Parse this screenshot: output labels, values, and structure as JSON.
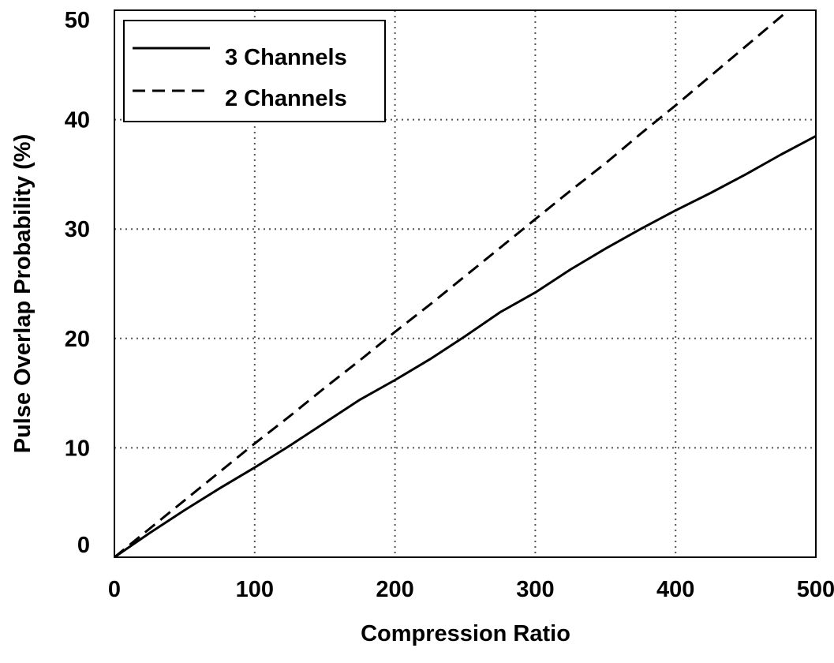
{
  "chart_data": {
    "type": "line",
    "title": "",
    "xlabel": "Compression Ratio",
    "ylabel": "Pulse Overlap Probability (%)",
    "xlim": [
      0,
      500
    ],
    "ylim": [
      0,
      50
    ],
    "x_ticks": [
      "0",
      "100",
      "200",
      "300",
      "400",
      "500"
    ],
    "y_ticks": [
      "0",
      "10",
      "20",
      "30",
      "40",
      "50"
    ],
    "grid": true,
    "grid_style": "dotted",
    "legend_position": "top-left",
    "colors": {
      "axes": "#000000",
      "grid": "#555555",
      "series": "#000000",
      "background": "#ffffff"
    },
    "series": [
      {
        "name": "3 Channels",
        "line_style": "solid",
        "points": [
          [
            0,
            0
          ],
          [
            25,
            2.2
          ],
          [
            50,
            4.3
          ],
          [
            75,
            6.3
          ],
          [
            100,
            8.2
          ],
          [
            125,
            10.2
          ],
          [
            150,
            12.3
          ],
          [
            175,
            14.4
          ],
          [
            200,
            16.2
          ],
          [
            225,
            18.1
          ],
          [
            250,
            20.2
          ],
          [
            275,
            22.4
          ],
          [
            300,
            24.2
          ],
          [
            325,
            26.3
          ],
          [
            350,
            28.2
          ],
          [
            375,
            30.0
          ],
          [
            400,
            31.7
          ],
          [
            425,
            33.3
          ],
          [
            450,
            35.0
          ],
          [
            475,
            36.8
          ],
          [
            500,
            38.5
          ]
        ]
      },
      {
        "name": "2 Channels",
        "line_style": "dashed",
        "points": [
          [
            0,
            0
          ],
          [
            25,
            2.6
          ],
          [
            50,
            5.2
          ],
          [
            75,
            7.8
          ],
          [
            100,
            10.4
          ],
          [
            125,
            12.9
          ],
          [
            150,
            15.5
          ],
          [
            175,
            18.0
          ],
          [
            200,
            20.6
          ],
          [
            225,
            23.1
          ],
          [
            250,
            25.7
          ],
          [
            275,
            28.3
          ],
          [
            300,
            30.9
          ],
          [
            325,
            33.5
          ],
          [
            350,
            36.0
          ],
          [
            375,
            38.7
          ],
          [
            400,
            41.3
          ],
          [
            425,
            44.0
          ],
          [
            450,
            46.7
          ],
          [
            475,
            49.4
          ],
          [
            485,
            50.5
          ]
        ]
      }
    ]
  }
}
